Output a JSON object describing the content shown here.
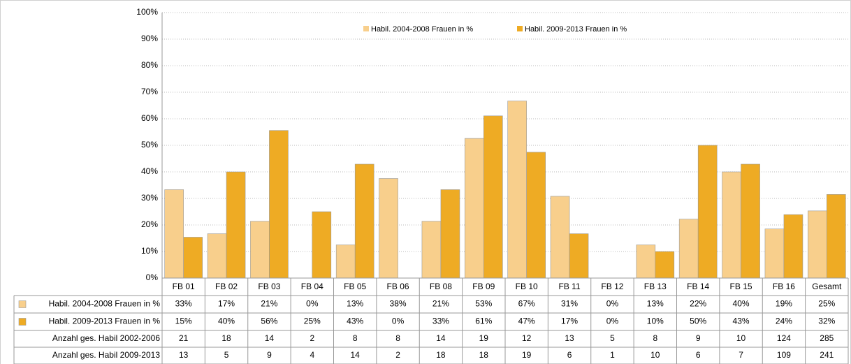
{
  "chart_data": {
    "type": "bar",
    "categories": [
      "FB 01",
      "FB 02",
      "FB 03",
      "FB 04",
      "FB 05",
      "FB 06",
      "FB 08",
      "FB 09",
      "FB 10",
      "FB 11",
      "FB 12",
      "FB 13",
      "FB 14",
      "FB 15",
      "FB 16",
      "Gesamt"
    ],
    "series": [
      {
        "name": "Habil. 2004-2008 Frauen in %",
        "color": "#f8cf8c",
        "values": [
          33.3,
          16.7,
          21.4,
          0,
          12.5,
          37.5,
          21.4,
          52.6,
          66.7,
          30.8,
          0,
          12.5,
          22.2,
          40,
          18.5,
          25.3
        ],
        "value_labels": [
          "33%",
          "17%",
          "21%",
          "0%",
          "13%",
          "38%",
          "21%",
          "53%",
          "67%",
          "31%",
          "0%",
          "13%",
          "22%",
          "40%",
          "19%",
          "25%"
        ]
      },
      {
        "name": "Habil. 2009-2013 Frauen in %",
        "color": "#eeab24",
        "values": [
          15.4,
          40,
          55.6,
          25,
          42.9,
          0,
          33.3,
          61.1,
          47.4,
          16.7,
          0,
          10,
          50,
          42.9,
          23.9,
          31.5
        ],
        "value_labels": [
          "15%",
          "40%",
          "56%",
          "25%",
          "43%",
          "0%",
          "33%",
          "61%",
          "47%",
          "17%",
          "0%",
          "10%",
          "50%",
          "43%",
          "24%",
          "32%"
        ]
      }
    ],
    "table_rows": [
      {
        "name": "Anzahl ges. Habil 2002-2006",
        "values": [
          21,
          18,
          14,
          2,
          8,
          8,
          14,
          19,
          12,
          13,
          5,
          8,
          9,
          10,
          124,
          285
        ]
      },
      {
        "name": "Anzahl ges. Habil 2009-2013",
        "values": [
          13,
          5,
          9,
          4,
          14,
          2,
          18,
          18,
          19,
          6,
          1,
          10,
          6,
          7,
          109,
          241
        ]
      }
    ],
    "ylim": [
      0,
      100
    ],
    "yticks": [
      {
        "value": 0,
        "label": "0%"
      },
      {
        "value": 10,
        "label": "10%"
      },
      {
        "value": 20,
        "label": "20%"
      },
      {
        "value": 30,
        "label": "30%"
      },
      {
        "value": 40,
        "label": "40%"
      },
      {
        "value": 50,
        "label": "50%"
      },
      {
        "value": 60,
        "label": "60%"
      },
      {
        "value": 70,
        "label": "70%"
      },
      {
        "value": 80,
        "label": "80%"
      },
      {
        "value": 90,
        "label": "90%"
      },
      {
        "value": 100,
        "label": "100%"
      }
    ],
    "grid": true,
    "legend": "top"
  }
}
